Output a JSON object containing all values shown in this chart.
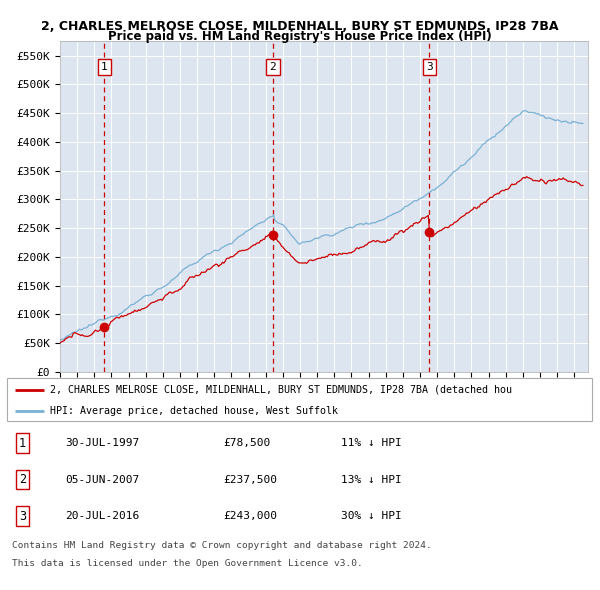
{
  "title1": "2, CHARLES MELROSE CLOSE, MILDENHALL, BURY ST EDMUNDS, IP28 7BA",
  "title2": "Price paid vs. HM Land Registry's House Price Index (HPI)",
  "ylim": [
    0,
    575000
  ],
  "yticks": [
    0,
    50000,
    100000,
    150000,
    200000,
    250000,
    300000,
    350000,
    400000,
    450000,
    500000,
    550000
  ],
  "ytick_labels": [
    "£0",
    "£50K",
    "£100K",
    "£150K",
    "£200K",
    "£250K",
    "£300K",
    "£350K",
    "£400K",
    "£450K",
    "£500K",
    "£550K"
  ],
  "xlim_min": 1995.0,
  "xlim_max": 2025.8,
  "bg_color": "#dde6f0",
  "grid_color": "#ffffff",
  "sale_dates": [
    1997.58,
    2007.42,
    2016.55
  ],
  "sale_prices": [
    78500,
    237500,
    243000
  ],
  "sale_labels": [
    "1",
    "2",
    "3"
  ],
  "sale_date_strs": [
    "30-JUL-1997",
    "05-JUN-2007",
    "20-JUL-2016"
  ],
  "sale_price_strs": [
    "£78,500",
    "£237,500",
    "£243,000"
  ],
  "sale_hpi_strs": [
    "11% ↓ HPI",
    "13% ↓ HPI",
    "30% ↓ HPI"
  ],
  "red_line_color": "#cc0000",
  "blue_line_color": "#7ab0d4",
  "marker_color": "#cc0000",
  "vline_color": "#cc0000",
  "box_color": "#cc0000",
  "legend_label_red": "2, CHARLES MELROSE CLOSE, MILDENHALL, BURY ST EDMUNDS, IP28 7BA (detached hou",
  "legend_label_blue": "HPI: Average price, detached house, West Suffolk",
  "footer1": "Contains HM Land Registry data © Crown copyright and database right 2024.",
  "footer2": "This data is licensed under the Open Government Licence v3.0."
}
